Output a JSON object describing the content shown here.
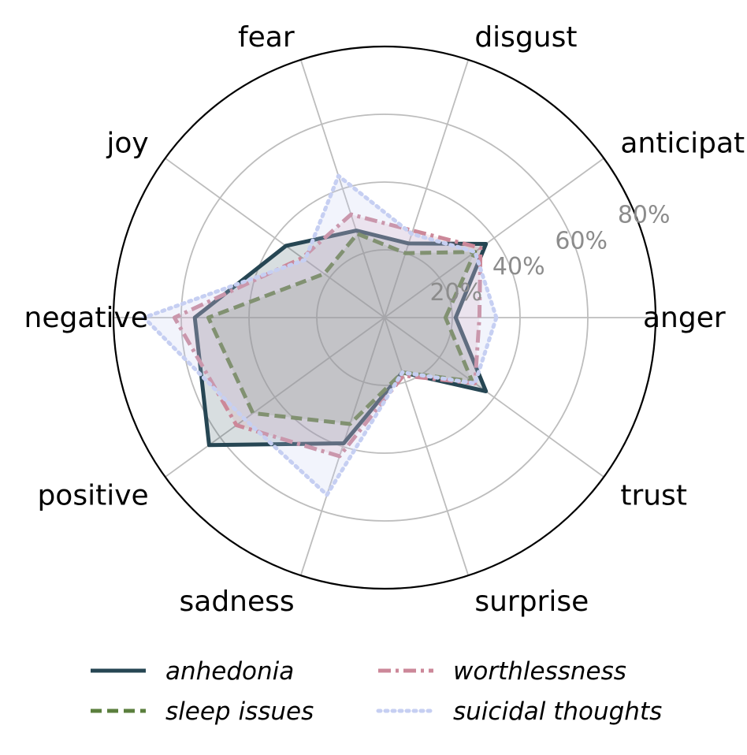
{
  "chart_data": {
    "type": "radar",
    "categories": [
      "anger",
      "anticipation",
      "disgust",
      "fear",
      "joy",
      "negative",
      "positive",
      "sadness",
      "surprise",
      "trust"
    ],
    "radial_ticks": [
      "20%",
      "40%",
      "60%",
      "80%"
    ],
    "radial_tick_values": [
      0.2,
      0.4,
      0.6,
      0.8
    ],
    "rmax": 0.8,
    "grid": true,
    "legend_position": "bottom",
    "series": [
      {
        "name": "anhedonia",
        "color": "#264653",
        "line_style": "solid",
        "fill_opacity": 0.18,
        "values": [
          0.21,
          0.37,
          0.23,
          0.27,
          0.36,
          0.56,
          0.64,
          0.39,
          0.17,
          0.37
        ]
      },
      {
        "name": "sleep issues",
        "color": "#5b7f3e",
        "line_style": "dashed",
        "fill_opacity": 0.18,
        "values": [
          0.18,
          0.33,
          0.2,
          0.26,
          0.22,
          0.52,
          0.48,
          0.33,
          0.17,
          0.32
        ]
      },
      {
        "name": "worthlessness",
        "color": "#cc8899",
        "line_style": "dashdot",
        "fill_opacity": 0.18,
        "values": [
          0.28,
          0.35,
          0.27,
          0.32,
          0.3,
          0.62,
          0.54,
          0.43,
          0.18,
          0.33
        ]
      },
      {
        "name": "suicidal thoughts",
        "color": "#c6cff2",
        "line_style": "dotted",
        "fill_opacity": 0.22,
        "values": [
          0.33,
          0.33,
          0.26,
          0.44,
          0.29,
          0.71,
          0.51,
          0.55,
          0.17,
          0.33
        ]
      }
    ]
  }
}
